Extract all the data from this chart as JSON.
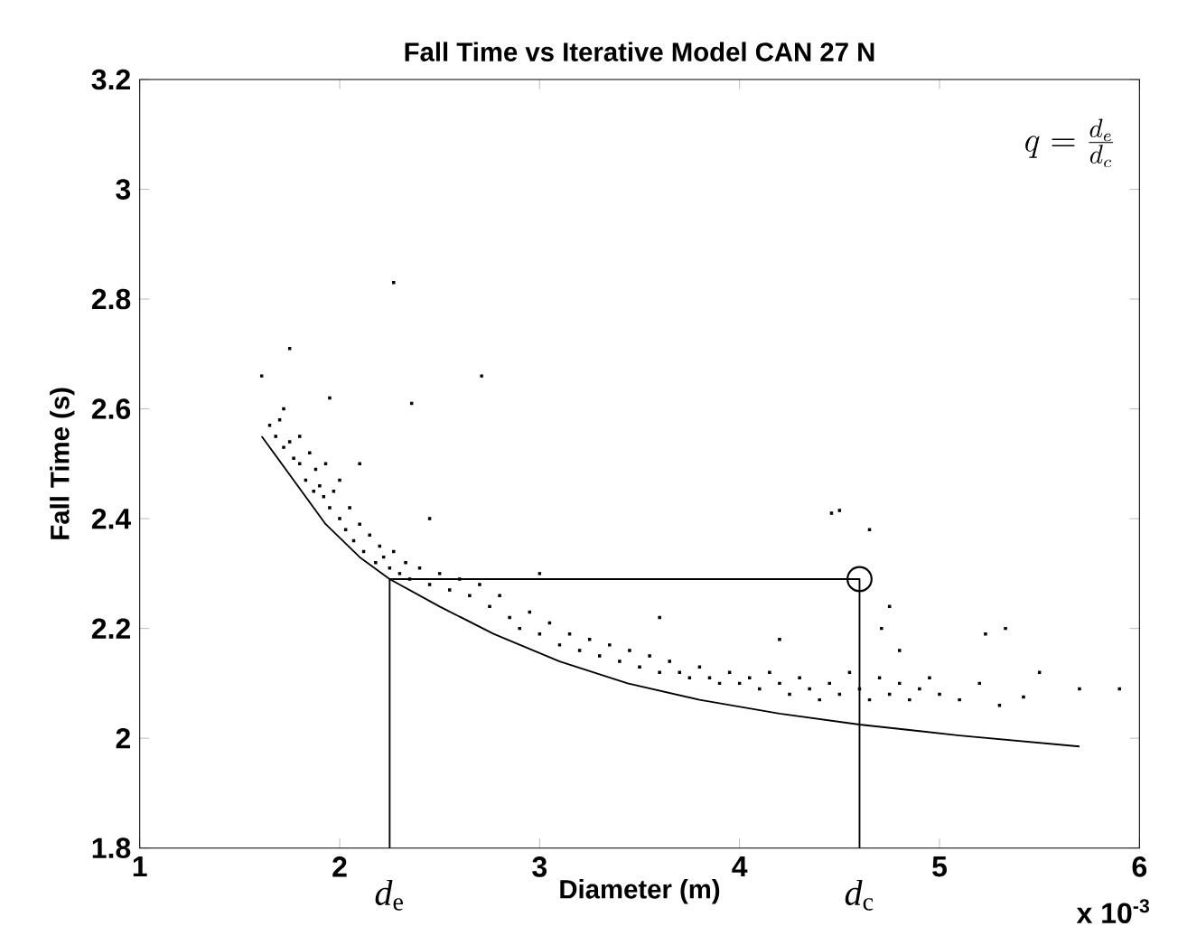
{
  "chart_data": {
    "type": "scatter",
    "title": "Fall Time vs Iterative Model CAN 27 N",
    "xlabel": "Diameter (m)",
    "ylabel": "Fall Time (s)",
    "xlim": [
      1,
      6
    ],
    "ylim": [
      1.8,
      3.2
    ],
    "xticks": [
      1,
      2,
      3,
      4,
      5,
      6
    ],
    "yticks": [
      1.8,
      2,
      2.2,
      2.4,
      2.6,
      2.8,
      3,
      3.2
    ],
    "grid": false,
    "annotations": [
      "q=\\frac{d_e}{d_c}",
      {
        "text": "*d*$_{e}$",
        "x": 2.25,
        "y": 1.8
      },
      {
        "text": "*d*$_{c}$",
        "x": 4.6,
        "y": 1.8
      },
      "x 10$^{-3}$"
    ],
    "series": [
      {
        "marker": "square",
        "color": "#000000",
        "x": [
          1.61,
          1.65,
          1.68,
          1.7,
          1.72,
          1.72,
          1.75,
          1.75,
          1.77,
          1.8,
          1.8,
          1.83,
          1.85,
          1.87,
          1.88,
          1.9,
          1.92,
          1.93,
          1.95,
          1.95,
          1.97,
          2.0,
          2.0,
          2.03,
          2.05,
          2.07,
          2.1,
          2.1,
          2.12,
          2.15,
          2.18,
          2.2,
          2.22,
          2.25,
          2.27,
          2.27,
          2.3,
          2.33,
          2.35,
          2.36,
          2.4,
          2.45,
          2.45,
          2.5,
          2.55,
          2.6,
          2.65,
          2.7,
          2.71,
          2.75,
          2.8,
          2.85,
          2.9,
          2.95,
          3.0,
          3.0,
          3.05,
          3.1,
          3.15,
          3.2,
          3.25,
          3.3,
          3.35,
          3.4,
          3.45,
          3.5,
          3.55,
          3.6,
          3.6,
          3.65,
          3.7,
          3.75,
          3.8,
          3.85,
          3.9,
          3.95,
          4.0,
          4.05,
          4.1,
          4.15,
          4.2,
          4.2,
          4.25,
          4.3,
          4.35,
          4.4,
          4.45,
          4.46,
          4.5,
          4.5,
          4.55,
          4.6,
          4.65,
          4.65,
          4.7,
          4.71,
          4.75,
          4.75,
          4.8,
          4.8,
          4.85,
          4.9,
          4.95,
          5.0,
          5.1,
          5.2,
          5.23,
          5.3,
          5.33,
          5.42,
          5.5,
          5.7,
          5.9
        ],
        "values": [
          2.66,
          2.57,
          2.55,
          2.58,
          2.53,
          2.6,
          2.54,
          2.71,
          2.51,
          2.5,
          2.55,
          2.47,
          2.52,
          2.45,
          2.49,
          2.46,
          2.44,
          2.5,
          2.42,
          2.62,
          2.45,
          2.4,
          2.47,
          2.38,
          2.42,
          2.36,
          2.39,
          2.5,
          2.34,
          2.37,
          2.32,
          2.35,
          2.33,
          2.31,
          2.34,
          2.83,
          2.3,
          2.32,
          2.29,
          2.61,
          2.31,
          2.28,
          2.4,
          2.3,
          2.27,
          2.29,
          2.26,
          2.28,
          2.66,
          2.24,
          2.26,
          2.22,
          2.2,
          2.23,
          2.19,
          2.3,
          2.21,
          2.17,
          2.19,
          2.16,
          2.18,
          2.15,
          2.17,
          2.14,
          2.16,
          2.13,
          2.15,
          2.12,
          2.22,
          2.14,
          2.12,
          2.11,
          2.13,
          2.11,
          2.1,
          2.12,
          2.1,
          2.11,
          2.09,
          2.12,
          2.1,
          2.18,
          2.08,
          2.11,
          2.09,
          2.07,
          2.1,
          2.41,
          2.08,
          2.415,
          2.12,
          2.09,
          2.07,
          2.38,
          2.11,
          2.2,
          2.08,
          2.24,
          2.1,
          2.16,
          2.07,
          2.09,
          2.11,
          2.08,
          2.07,
          2.1,
          2.19,
          2.06,
          2.2,
          2.075,
          2.12,
          2.09,
          2.09
        ]
      },
      {
        "type": "line",
        "marker": "none",
        "line_style": "solid",
        "color": "#000000",
        "x": [
          1.61,
          1.75,
          1.93,
          2.1,
          2.25,
          2.5,
          2.77,
          3.1,
          3.44,
          3.8,
          4.2,
          4.6,
          5.1,
          5.7
        ],
        "values": [
          2.55,
          2.48,
          2.39,
          2.33,
          2.29,
          2.24,
          2.19,
          2.14,
          2.1,
          2.07,
          2.045,
          2.025,
          2.005,
          1.985
        ]
      },
      {
        "type": "line",
        "marker": "none",
        "line_style": "solid",
        "color": "#000000",
        "x": [
          2.25,
          2.25,
          4.6,
          4.6
        ],
        "values": [
          1.8,
          2.29,
          2.29,
          1.8
        ]
      },
      {
        "type": "scatter",
        "marker": "circle",
        "color": "#000000",
        "x": [
          4.6
        ],
        "values": [
          2.29
        ]
      }
    ]
  }
}
